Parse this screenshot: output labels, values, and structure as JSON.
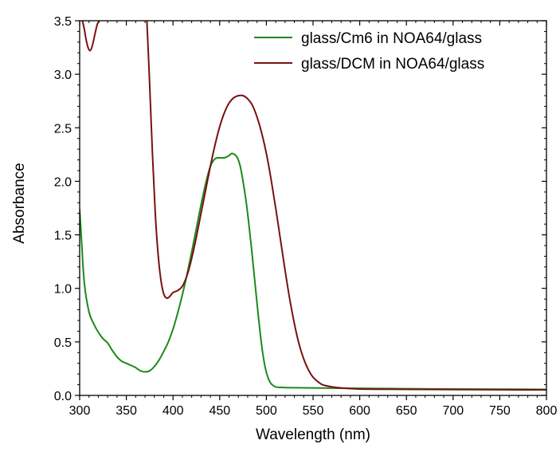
{
  "chart_data": {
    "type": "line",
    "xlabel": "Wavelength (nm)",
    "ylabel": "Absorbance",
    "xlim": [
      300,
      800
    ],
    "ylim": [
      0.0,
      3.5
    ],
    "x_ticks": [
      300,
      350,
      400,
      450,
      500,
      550,
      600,
      650,
      700,
      750,
      800
    ],
    "x_tick_labels": [
      "300",
      "350",
      "400",
      "450",
      "500",
      "550",
      "600",
      "650",
      "700",
      "750",
      "800"
    ],
    "y_ticks": [
      0.0,
      0.5,
      1.0,
      1.5,
      2.0,
      2.5,
      3.0,
      3.5
    ],
    "y_tick_labels": [
      "0.0",
      "0.5",
      "1.0",
      "1.5",
      "2.0",
      "2.5",
      "3.0",
      "3.5"
    ],
    "grid": false,
    "legend_position": "top-right",
    "series": [
      {
        "name": "glass/Cm6 in NOA64/glass",
        "color": "#1a8a1a",
        "x": [
          300,
          302,
          305,
          310,
          315,
          320,
          325,
          330,
          335,
          340,
          345,
          350,
          355,
          360,
          365,
          370,
          375,
          380,
          385,
          390,
          395,
          400,
          405,
          410,
          415,
          420,
          425,
          430,
          435,
          440,
          445,
          450,
          455,
          460,
          463,
          466,
          469,
          472,
          475,
          478,
          481,
          484,
          487,
          490,
          493,
          496,
          499,
          502,
          505,
          510,
          515,
          520,
          530,
          550,
          600,
          650,
          700,
          750,
          800
        ],
        "y": [
          1.74,
          1.45,
          1.05,
          0.78,
          0.67,
          0.59,
          0.53,
          0.49,
          0.42,
          0.36,
          0.32,
          0.3,
          0.28,
          0.26,
          0.23,
          0.22,
          0.23,
          0.27,
          0.33,
          0.41,
          0.5,
          0.62,
          0.77,
          0.94,
          1.13,
          1.34,
          1.56,
          1.78,
          1.98,
          2.14,
          2.21,
          2.22,
          2.22,
          2.24,
          2.26,
          2.25,
          2.22,
          2.14,
          2.0,
          1.83,
          1.62,
          1.38,
          1.12,
          0.86,
          0.61,
          0.4,
          0.25,
          0.16,
          0.11,
          0.08,
          0.075,
          0.073,
          0.072,
          0.07,
          0.066,
          0.062,
          0.06,
          0.058,
          0.056
        ]
      },
      {
        "name": "glass/DCM in NOA64/glass",
        "color": "#7a1010",
        "x": [
          303,
          305,
          307,
          309,
          311,
          313,
          315,
          317,
          319,
          321,
          323,
          325,
          370,
          372,
          375,
          378,
          381,
          384,
          387,
          390,
          393,
          396,
          400,
          405,
          410,
          415,
          420,
          425,
          430,
          435,
          440,
          445,
          450,
          455,
          460,
          465,
          470,
          475,
          480,
          485,
          490,
          495,
          500,
          505,
          510,
          515,
          520,
          525,
          530,
          535,
          540,
          545,
          550,
          555,
          560,
          570,
          580,
          600,
          650,
          700,
          750,
          800
        ],
        "y": [
          3.5,
          3.42,
          3.32,
          3.25,
          3.22,
          3.25,
          3.32,
          3.4,
          3.47,
          3.5,
          3.6,
          3.7,
          3.7,
          3.5,
          2.9,
          2.25,
          1.7,
          1.32,
          1.08,
          0.95,
          0.91,
          0.92,
          0.96,
          0.98,
          1.02,
          1.12,
          1.28,
          1.48,
          1.7,
          1.92,
          2.14,
          2.34,
          2.51,
          2.64,
          2.73,
          2.78,
          2.8,
          2.8,
          2.77,
          2.71,
          2.6,
          2.45,
          2.26,
          2.02,
          1.75,
          1.46,
          1.17,
          0.9,
          0.67,
          0.48,
          0.34,
          0.24,
          0.17,
          0.13,
          0.1,
          0.08,
          0.07,
          0.06,
          0.057,
          0.055,
          0.053,
          0.052
        ]
      }
    ]
  }
}
